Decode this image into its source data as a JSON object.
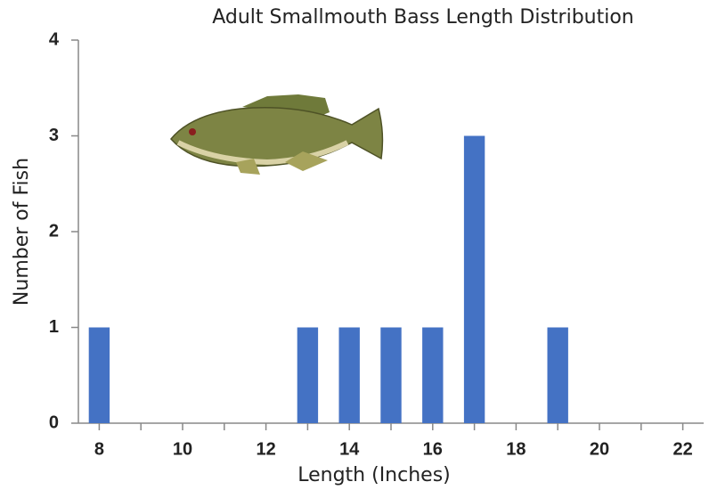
{
  "chart_data": {
    "type": "bar",
    "title": "Adult Smallmouth Bass Length Distribution",
    "x_label": "Length (Inches)",
    "y_label": "Number of Fish",
    "x": [
      8,
      9,
      10,
      11,
      12,
      13,
      14,
      15,
      16,
      17,
      18,
      19,
      20,
      21,
      22
    ],
    "values": [
      1,
      0,
      0,
      0,
      0,
      1,
      1,
      1,
      1,
      3,
      0,
      1,
      0,
      0,
      0
    ],
    "color": "#4472c4",
    "xlim": [
      7.5,
      22.5
    ],
    "xticks": [
      8,
      10,
      12,
      14,
      16,
      18,
      20,
      22
    ],
    "ylim": [
      0,
      4
    ],
    "yticks": [
      0,
      1,
      2,
      3,
      4
    ],
    "grid": false
  }
}
